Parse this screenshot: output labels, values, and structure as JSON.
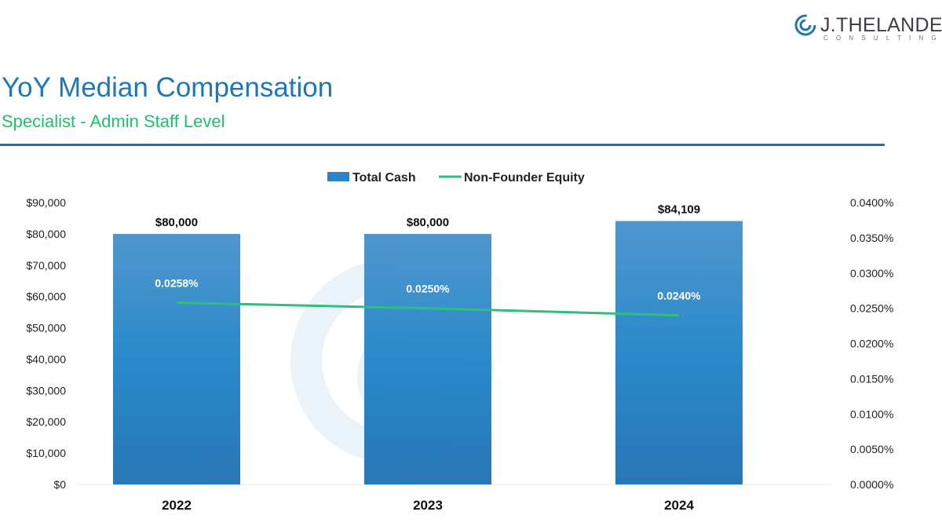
{
  "logo": {
    "name": "J.THELANDER",
    "sub": "CONSULTING"
  },
  "header": {
    "title": "YoY Median Compensation",
    "subtitle": "Specialist - Admin Staff Level"
  },
  "colors": {
    "title": "#1f77b4",
    "subtitle": "#1fbf6b",
    "bar": "#1f7fc4",
    "line": "#2ebf7f"
  },
  "chart_data": {
    "type": "bar",
    "categories": [
      "2022",
      "2023",
      "2024"
    ],
    "series": [
      {
        "name": "Total Cash",
        "axis": "left",
        "type": "bar",
        "values": [
          80000,
          80000,
          84109
        ],
        "labels": [
          "$80,000",
          "$80,000",
          "$84,109"
        ]
      },
      {
        "name": "Non-Founder Equity",
        "axis": "right",
        "type": "line",
        "values": [
          0.0258,
          0.025,
          0.024
        ],
        "labels": [
          "0.0258%",
          "0.0250%",
          "0.0240%"
        ]
      }
    ],
    "y_left": {
      "lim": [
        0,
        90000
      ],
      "ticks": [
        "$0",
        "$10,000",
        "$20,000",
        "$30,000",
        "$40,000",
        "$50,000",
        "$60,000",
        "$70,000",
        "$80,000",
        "$90,000"
      ]
    },
    "y_right": {
      "lim": [
        0,
        0.04
      ],
      "ticks": [
        "0.0000%",
        "0.0050%",
        "0.0100%",
        "0.0150%",
        "0.0200%",
        "0.0250%",
        "0.0300%",
        "0.0350%",
        "0.0400%"
      ]
    },
    "legend": "top-center",
    "grid": false
  }
}
